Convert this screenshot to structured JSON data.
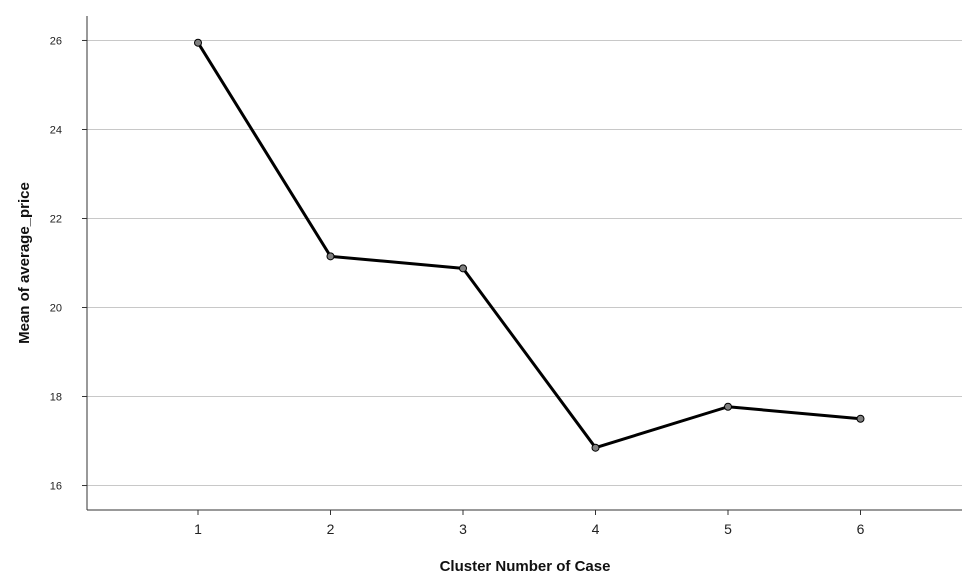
{
  "chart_data": {
    "type": "line",
    "title": "",
    "xlabel": "Cluster Number of Case",
    "ylabel": "Mean of average_price",
    "categories": [
      "1",
      "2",
      "3",
      "4",
      "5",
      "6"
    ],
    "series": [
      {
        "values": [
          25.95,
          21.15,
          20.88,
          16.85,
          17.77,
          17.5
        ]
      }
    ],
    "yticks": [
      "16",
      "18",
      "20",
      "22",
      "24",
      "26"
    ],
    "ylim": [
      15.45,
      26.55
    ],
    "grid": true,
    "legend": "none",
    "colors": {
      "line": "#000000",
      "marker": "#7f7f7f",
      "grid": "#c8c8c8",
      "axis": "#333333"
    }
  }
}
